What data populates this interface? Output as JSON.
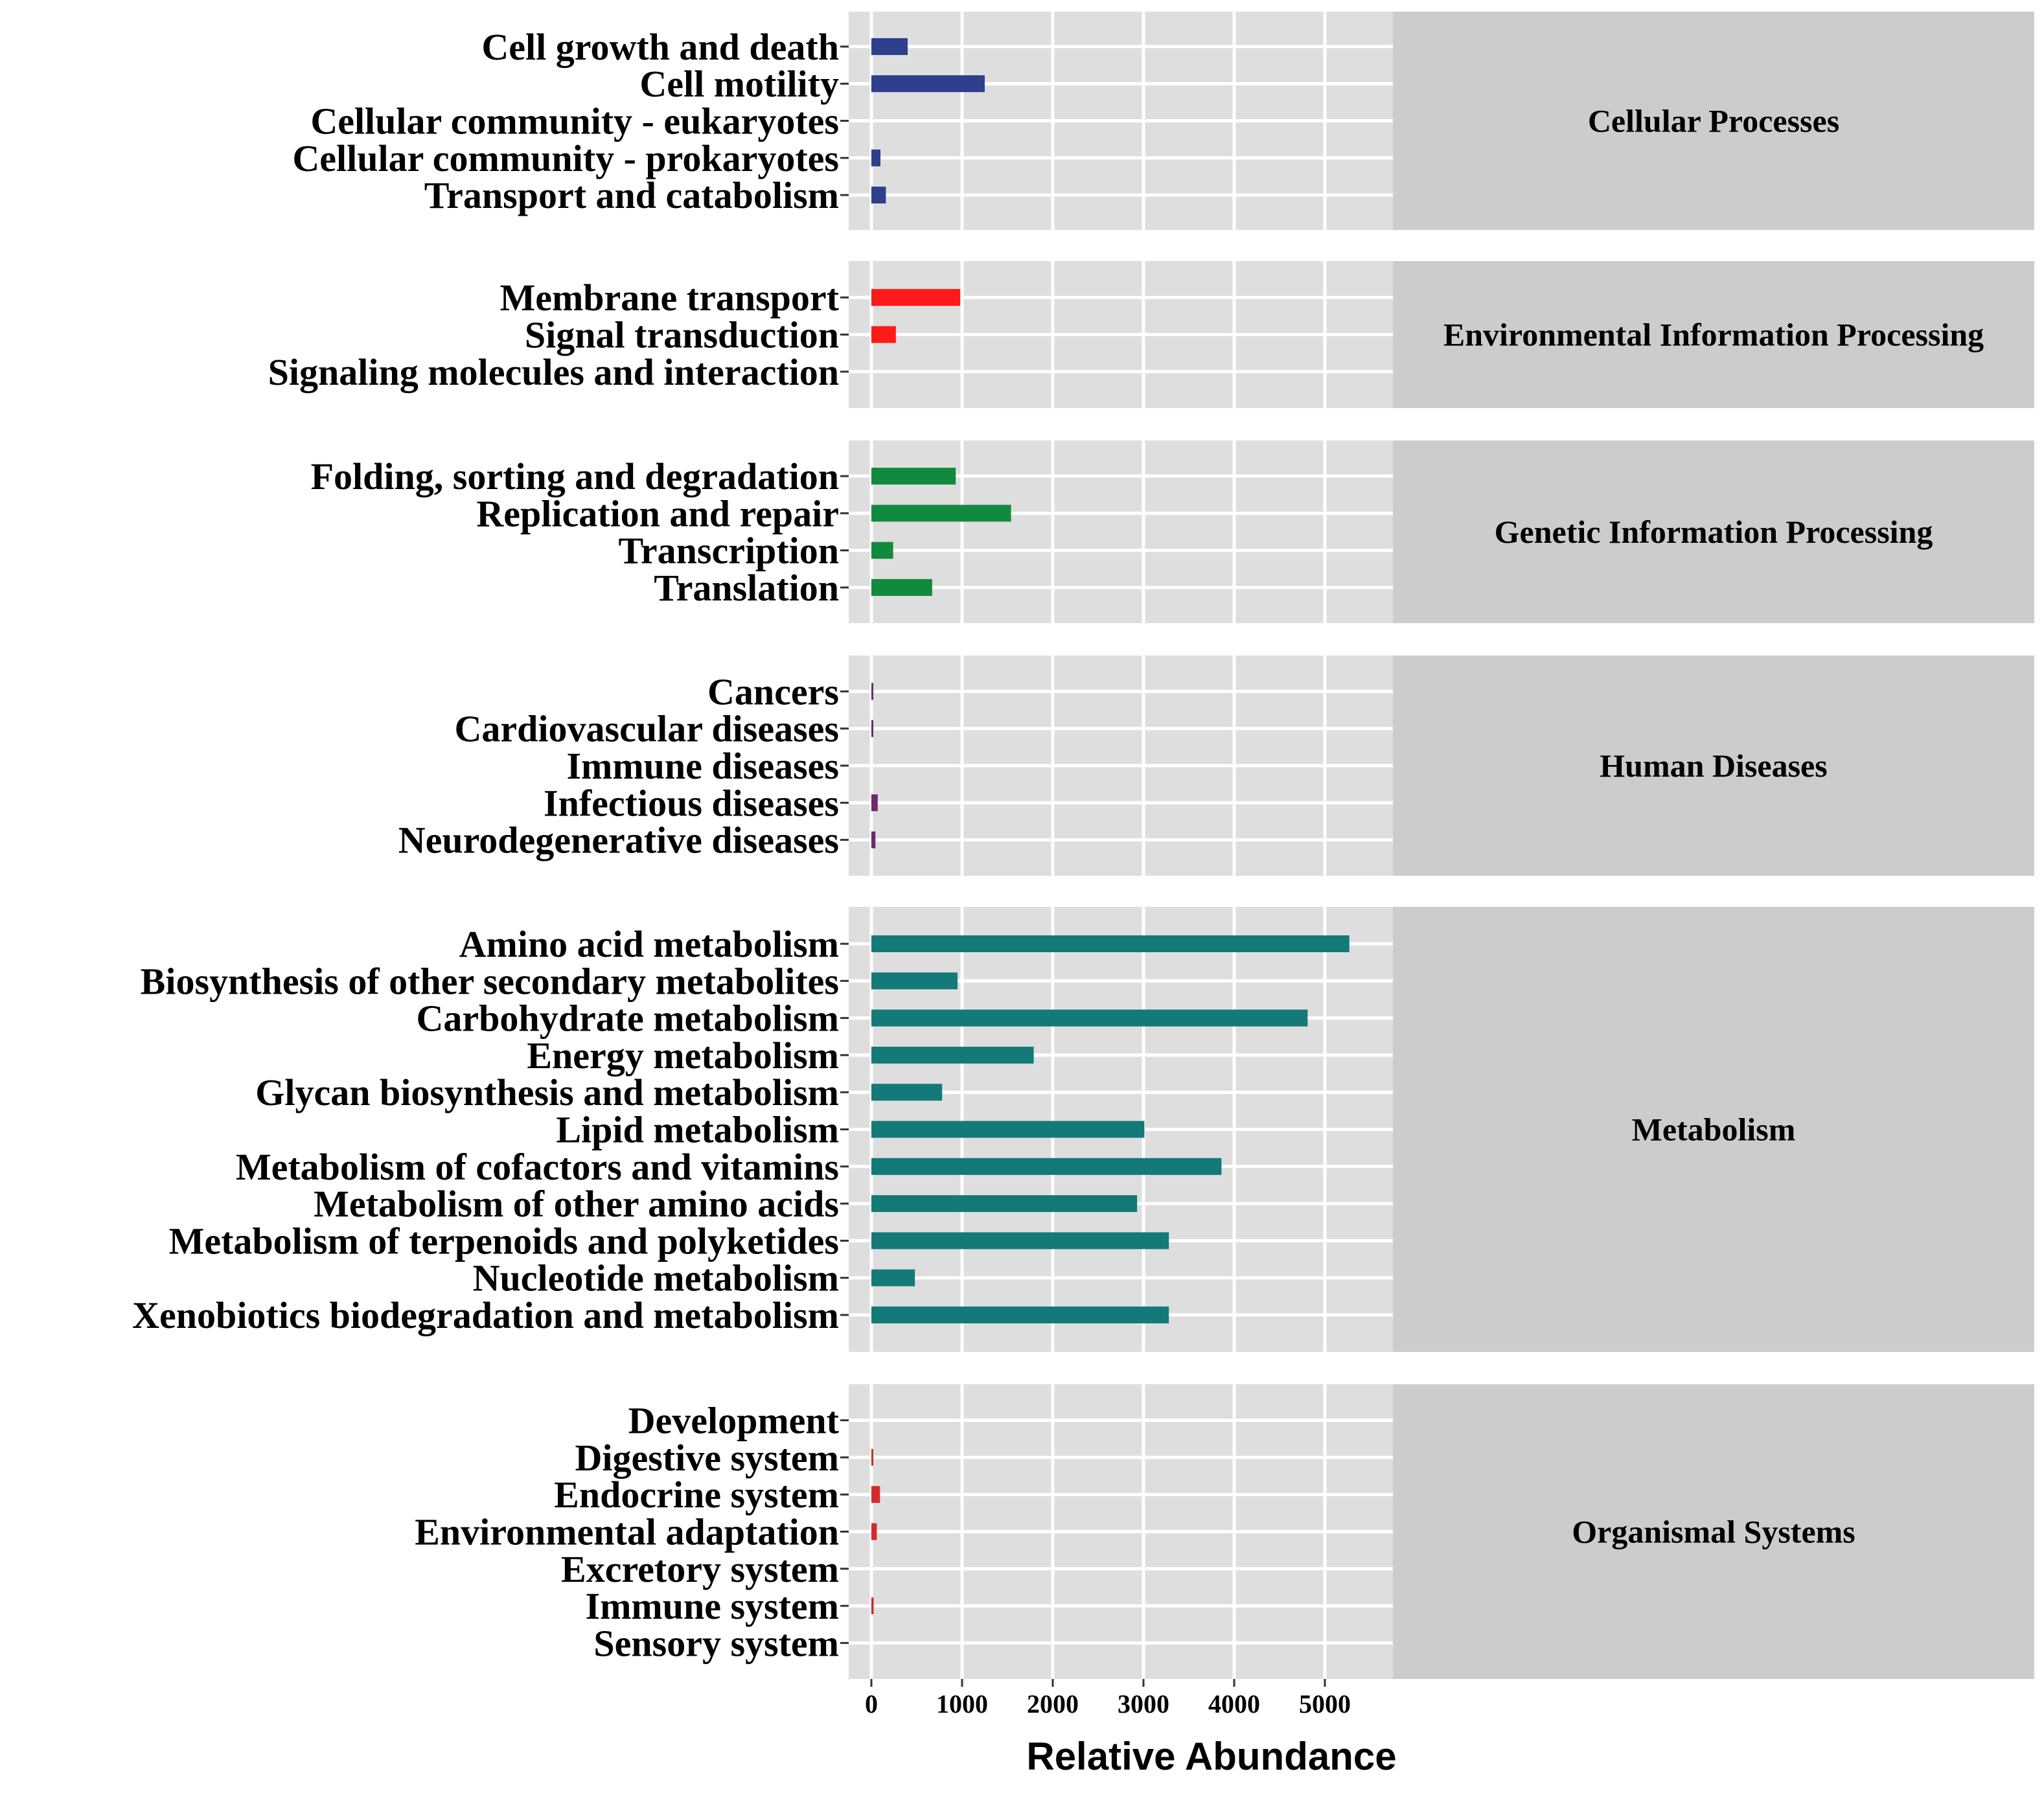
{
  "chart_data": {
    "type": "bar",
    "orientation": "horizontal",
    "title": "",
    "xlabel": "Relative Abundance",
    "ylabel": "",
    "xlim": [
      -250,
      5750
    ],
    "xticks": [
      0,
      1000,
      2000,
      3000,
      4000,
      5000
    ],
    "grid": true,
    "facets": [
      {
        "name": "Cellular Processes",
        "color": "#2E3F8E",
        "categories": [
          "Cell growth and death",
          "Cell motility",
          "Cellular community - eukaryotes",
          "Cellular community - prokaryotes",
          "Transport and catabolism"
        ],
        "values": [
          400,
          1250,
          0,
          100,
          160
        ]
      },
      {
        "name": "Environmental Information Processing",
        "color": "#FF1A1A",
        "categories": [
          "Membrane transport",
          "Signal transduction",
          "Signaling molecules and interaction"
        ],
        "values": [
          980,
          270,
          0
        ]
      },
      {
        "name": "Genetic Information Processing",
        "color": "#128A3E",
        "categories": [
          "Folding, sorting and degradation",
          "Replication and repair",
          "Transcription",
          "Translation"
        ],
        "values": [
          930,
          1540,
          240,
          670
        ]
      },
      {
        "name": "Human Diseases",
        "color": "#6E2A6E",
        "categories": [
          "Cancers",
          "Cardiovascular diseases",
          "Immune diseases",
          "Infectious diseases",
          "Neurodegenerative diseases"
        ],
        "values": [
          8,
          8,
          0,
          70,
          45
        ]
      },
      {
        "name": "Metabolism",
        "color": "#137A78",
        "categories": [
          "Amino acid metabolism",
          "Biosynthesis of other secondary metabolites",
          "Carbohydrate metabolism",
          "Energy metabolism",
          "Glycan biosynthesis and metabolism",
          "Lipid metabolism",
          "Metabolism of cofactors and vitamins",
          "Metabolism of other amino acids",
          "Metabolism of terpenoids and polyketides",
          "Nucleotide metabolism",
          "Xenobiotics biodegradation and metabolism"
        ],
        "values": [
          5270,
          950,
          4810,
          1790,
          780,
          3010,
          3860,
          2930,
          3280,
          480,
          3280
        ]
      },
      {
        "name": "Organismal Systems",
        "color": "#D42A2A",
        "categories": [
          "Development",
          "Digestive system",
          "Endocrine system",
          "Environmental adaptation",
          "Excretory system",
          "Immune system",
          "Sensory system"
        ],
        "values": [
          0,
          12,
          95,
          60,
          0,
          25,
          0
        ]
      }
    ]
  }
}
